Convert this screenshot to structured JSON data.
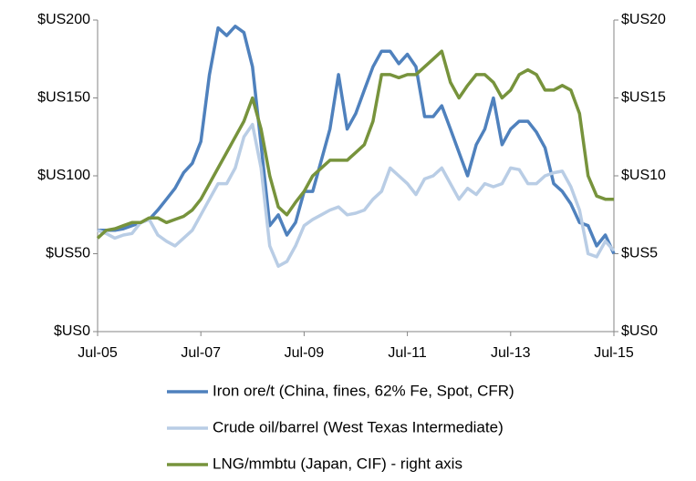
{
  "chart_data": {
    "type": "line",
    "x": [
      "2005-07",
      "2005-09",
      "2005-11",
      "2006-01",
      "2006-03",
      "2006-05",
      "2006-07",
      "2006-09",
      "2006-11",
      "2007-01",
      "2007-03",
      "2007-05",
      "2007-07",
      "2007-09",
      "2007-11",
      "2008-01",
      "2008-03",
      "2008-05",
      "2008-07",
      "2008-09",
      "2008-11",
      "2009-01",
      "2009-03",
      "2009-05",
      "2009-07",
      "2009-09",
      "2009-11",
      "2010-01",
      "2010-03",
      "2010-05",
      "2010-07",
      "2010-09",
      "2010-11",
      "2011-01",
      "2011-03",
      "2011-05",
      "2011-07",
      "2011-09",
      "2011-11",
      "2012-01",
      "2012-03",
      "2012-05",
      "2012-07",
      "2012-09",
      "2012-11",
      "2013-01",
      "2013-03",
      "2013-05",
      "2013-07",
      "2013-09",
      "2013-11",
      "2014-01",
      "2014-03",
      "2014-05",
      "2014-07",
      "2014-09",
      "2014-11",
      "2015-01",
      "2015-03",
      "2015-05",
      "2015-07"
    ],
    "series": [
      {
        "name": "Iron ore/t (China, fines, 62% Fe, Spot, CFR)",
        "color": "#4f81bd",
        "axis": "y",
        "values": [
          65,
          65,
          65,
          66,
          68,
          70,
          72,
          78,
          85,
          92,
          102,
          108,
          122,
          165,
          195,
          190,
          196,
          192,
          170,
          120,
          68,
          75,
          62,
          70,
          90,
          90,
          110,
          130,
          165,
          130,
          140,
          155,
          170,
          180,
          180,
          172,
          178,
          170,
          138,
          138,
          145,
          130,
          115,
          100,
          120,
          130,
          150,
          120,
          130,
          135,
          135,
          128,
          118,
          95,
          90,
          82,
          70,
          68,
          55,
          62,
          50
        ]
      },
      {
        "name": "Crude oil/barrel (West Texas Intermediate)",
        "color": "#b9cde5",
        "axis": "y",
        "values": [
          65,
          63,
          60,
          62,
          63,
          70,
          72,
          62,
          58,
          55,
          60,
          65,
          75,
          85,
          95,
          95,
          105,
          125,
          133,
          105,
          55,
          42,
          45,
          55,
          68,
          72,
          75,
          78,
          80,
          75,
          76,
          78,
          85,
          90,
          105,
          100,
          95,
          88,
          98,
          100,
          105,
          95,
          85,
          92,
          88,
          95,
          93,
          95,
          105,
          104,
          95,
          95,
          100,
          102,
          103,
          93,
          78,
          50,
          48,
          58,
          52
        ]
      },
      {
        "name": "LNG/mmbtu (Japan, CIF) - right axis",
        "color": "#77933c",
        "axis": "y2",
        "values": [
          6.0,
          6.5,
          6.6,
          6.8,
          7.0,
          7.0,
          7.3,
          7.3,
          7.0,
          7.2,
          7.4,
          7.8,
          8.5,
          9.5,
          10.5,
          11.5,
          12.5,
          13.5,
          15.0,
          13.0,
          10.0,
          8.0,
          7.5,
          8.3,
          9.0,
          10.0,
          10.5,
          11.0,
          11.0,
          11.0,
          11.5,
          12.0,
          13.5,
          16.5,
          16.5,
          16.3,
          16.5,
          16.5,
          17.0,
          17.5,
          18.0,
          16.0,
          15.0,
          15.8,
          16.5,
          16.5,
          16.0,
          15.0,
          15.5,
          16.5,
          16.8,
          16.5,
          15.5,
          15.5,
          15.8,
          15.5,
          14.0,
          10.0,
          8.7,
          8.5,
          8.5
        ]
      }
    ],
    "xlim": [
      "2005-07",
      "2015-07"
    ],
    "xticks": [
      {
        "value": "2005-07",
        "label": "Jul-05"
      },
      {
        "value": "2007-07",
        "label": "Jul-07"
      },
      {
        "value": "2009-07",
        "label": "Jul-09"
      },
      {
        "value": "2011-07",
        "label": "Jul-11"
      },
      {
        "value": "2013-07",
        "label": "Jul-13"
      },
      {
        "value": "2015-07",
        "label": "Jul-15"
      }
    ],
    "ylim": [
      0,
      200
    ],
    "yticks": [
      {
        "value": 0,
        "label": "$US0"
      },
      {
        "value": 50,
        "label": "$US50"
      },
      {
        "value": 100,
        "label": "$US100"
      },
      {
        "value": 150,
        "label": "$US150"
      },
      {
        "value": 200,
        "label": "$US200"
      }
    ],
    "y2lim": [
      0,
      20
    ],
    "y2ticks": [
      {
        "value": 0,
        "label": "$US0"
      },
      {
        "value": 5,
        "label": "$US5"
      },
      {
        "value": 10,
        "label": "$US10"
      },
      {
        "value": 15,
        "label": "$US15"
      },
      {
        "value": 20,
        "label": "$US20"
      }
    ],
    "grid": false,
    "legend": "bottom"
  }
}
